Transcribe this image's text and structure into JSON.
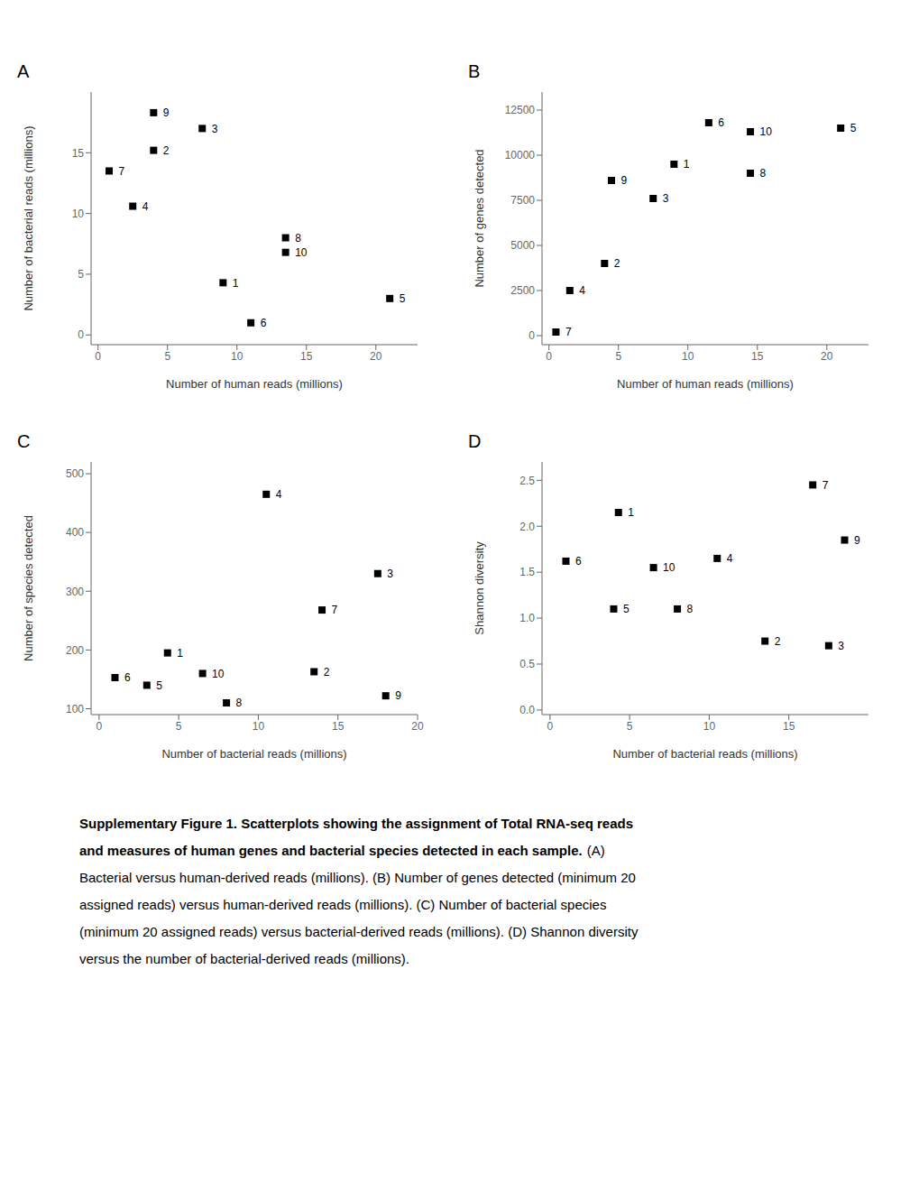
{
  "chart_data": [
    {
      "type": "scatter",
      "title": "A",
      "xlabel": "Number of human reads (millions)",
      "ylabel": "Number of bacterial reads (millions)",
      "xlim": [
        -0.5,
        23
      ],
      "ylim": [
        -0.8,
        20
      ],
      "xticks": [
        0,
        5,
        10,
        15,
        20
      ],
      "yticks": [
        0,
        5,
        10,
        15
      ],
      "x": [
        9.0,
        4.0,
        7.5,
        2.5,
        21.0,
        11.0,
        0.8,
        13.5,
        4.0,
        13.5
      ],
      "values": [
        4.3,
        15.2,
        17.0,
        10.6,
        3.0,
        1.0,
        13.5,
        8.0,
        18.3,
        6.8
      ],
      "point_labels": [
        "1",
        "2",
        "3",
        "4",
        "5",
        "6",
        "7",
        "8",
        "9",
        "10"
      ],
      "color": "#000000",
      "marker": "square",
      "grid": false
    },
    {
      "type": "scatter",
      "title": "B",
      "xlabel": "Number of human reads (millions)",
      "ylabel": "Number of genes detected",
      "xlim": [
        -0.5,
        23
      ],
      "ylim": [
        -500,
        13500
      ],
      "xticks": [
        0,
        5,
        10,
        15,
        20
      ],
      "yticks": [
        0,
        2500,
        5000,
        7500,
        10000,
        12500
      ],
      "x": [
        9.0,
        4.0,
        7.5,
        1.5,
        21.0,
        11.5,
        0.5,
        14.5,
        4.5,
        14.5
      ],
      "values": [
        9500,
        4000,
        7600,
        2500,
        11500,
        11800,
        200,
        9000,
        8600,
        11300
      ],
      "point_labels": [
        "1",
        "2",
        "3",
        "4",
        "5",
        "6",
        "7",
        "8",
        "9",
        "10"
      ],
      "color": "#000000",
      "marker": "square",
      "grid": false
    },
    {
      "type": "scatter",
      "title": "C",
      "xlabel": "Number of bacterial reads (millions)",
      "ylabel": "Number of species detected",
      "xlim": [
        -0.5,
        20
      ],
      "ylim": [
        90,
        520
      ],
      "xticks": [
        0,
        5,
        10,
        15,
        20
      ],
      "yticks": [
        100,
        200,
        300,
        400,
        500
      ],
      "x": [
        4.3,
        13.5,
        17.5,
        10.5,
        3.0,
        1.0,
        14.0,
        8.0,
        18.0,
        6.5
      ],
      "values": [
        195,
        163,
        330,
        465,
        140,
        153,
        268,
        110,
        122,
        160
      ],
      "point_labels": [
        "1",
        "2",
        "3",
        "4",
        "5",
        "6",
        "7",
        "8",
        "9",
        "10"
      ],
      "color": "#000000",
      "marker": "square",
      "grid": false
    },
    {
      "type": "scatter",
      "title": "D",
      "xlabel": "Number of bacterial reads (millions)",
      "ylabel": "Shannon diversity",
      "xlim": [
        -0.5,
        20
      ],
      "ylim": [
        -0.05,
        2.7
      ],
      "xticks": [
        0,
        5,
        10,
        15
      ],
      "yticks": [
        {
          "value": 0,
          "label": "0.0"
        },
        0.5,
        {
          "value": 1,
          "label": "1.0"
        },
        1.5,
        {
          "value": 2,
          "label": "2.0"
        },
        2.5
      ],
      "x": [
        4.3,
        13.5,
        17.5,
        10.5,
        4.0,
        1.0,
        16.5,
        8.0,
        18.5,
        6.5
      ],
      "values": [
        2.15,
        0.75,
        0.7,
        1.65,
        1.1,
        1.62,
        2.45,
        1.1,
        1.85,
        1.55
      ],
      "point_labels": [
        "1",
        "2",
        "3",
        "4",
        "5",
        "6",
        "7",
        "8",
        "9",
        "10"
      ],
      "color": "#000000",
      "marker": "square",
      "grid": false
    }
  ],
  "caption_title": [
    "Supplementary Figure 1. Scatterplots showing the assignment of Total RNA-seq reads",
    "and measures of human genes and bacterial species detected in each sample."
  ],
  "caption_text": [
    "(A)",
    "Bacterial versus human-derived reads (millions). (B) Number of genes detected (minimum 20",
    "assigned reads) versus human-derived reads (millions). (C) Number of bacterial species",
    "(minimum 20 assigned reads) versus bacterial-derived reads (millions). (D) Shannon diversity",
    "versus the number of bacterial-derived reads (millions)."
  ]
}
